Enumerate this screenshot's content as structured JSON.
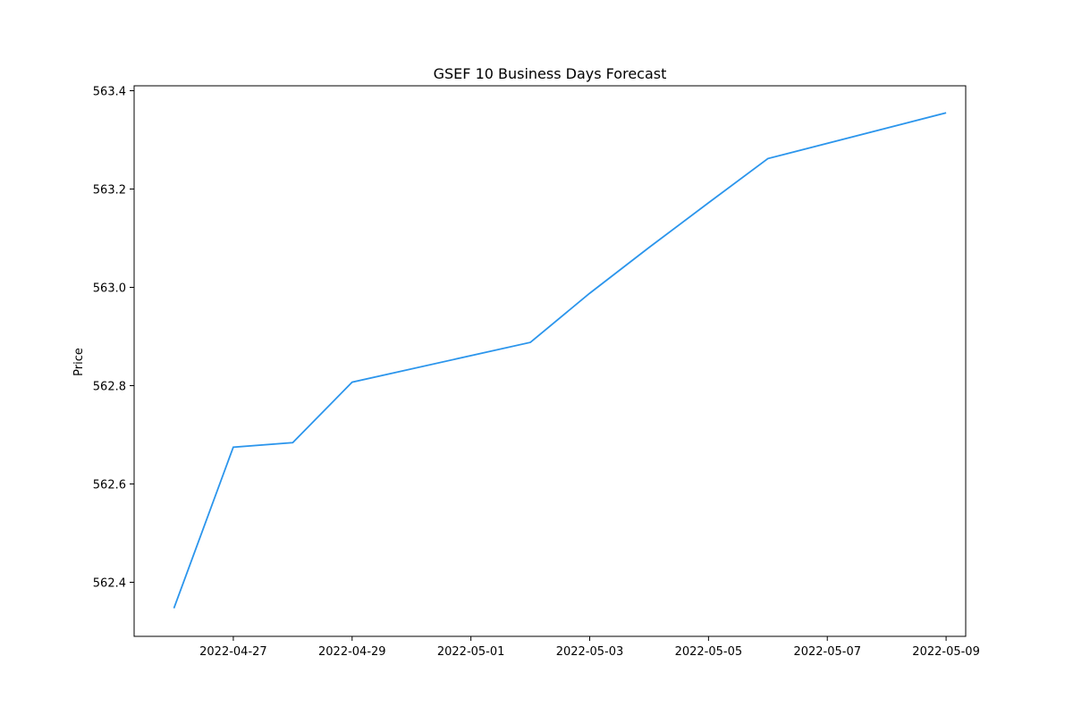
{
  "chart_data": {
    "type": "line",
    "title": "GSEF 10 Business Days Forecast",
    "xlabel": "",
    "ylabel": "Price",
    "grid": false,
    "legend": "none",
    "line_color": "#2b95ec",
    "x_ticks": [
      "2022-04-27",
      "2022-04-29",
      "2022-05-01",
      "2022-05-03",
      "2022-05-05",
      "2022-05-07",
      "2022-05-09"
    ],
    "y_ticks": [
      "562.4",
      "562.6",
      "562.8",
      "563.0",
      "563.2",
      "563.4"
    ],
    "xlim": [
      "2022-04-25",
      "2022-05-09"
    ],
    "ylim": [
      562.29,
      563.41
    ],
    "series": [
      {
        "x": [
          "2022-04-26",
          "2022-04-27",
          "2022-04-28",
          "2022-04-29",
          "2022-05-02",
          "2022-05-03",
          "2022-05-04",
          "2022-05-05",
          "2022-05-06",
          "2022-05-09"
        ],
        "y": [
          562.347,
          562.675,
          562.684,
          562.807,
          562.888,
          562.988,
          563.081,
          563.172,
          563.262,
          563.355
        ]
      }
    ]
  }
}
